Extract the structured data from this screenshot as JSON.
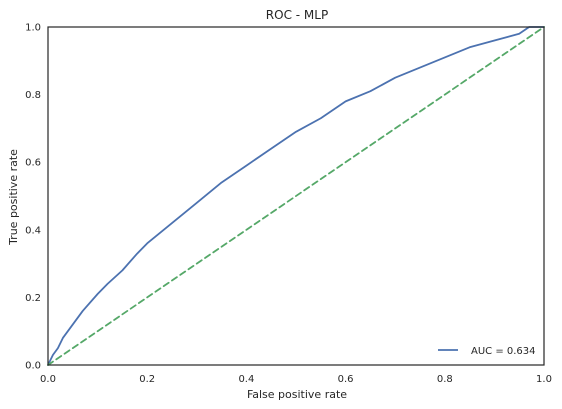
{
  "chart_data": {
    "type": "line",
    "title": "ROC - MLP",
    "xlabel": "False positive rate",
    "ylabel": "True positive rate",
    "xlim": [
      0,
      1
    ],
    "ylim": [
      0,
      1
    ],
    "x_ticks": [
      "0.0",
      "0.2",
      "0.4",
      "0.6",
      "0.8",
      "1.0"
    ],
    "y_ticks": [
      "0.0",
      "0.2",
      "0.4",
      "0.6",
      "0.8",
      "1.0"
    ],
    "grid": false,
    "legend_position": "lower-right",
    "series": [
      {
        "name": "AUC = 0.634",
        "color": "#4c72b0",
        "style": "solid",
        "x": [
          0.0,
          0.01,
          0.02,
          0.03,
          0.05,
          0.07,
          0.1,
          0.12,
          0.15,
          0.18,
          0.2,
          0.25,
          0.3,
          0.35,
          0.4,
          0.45,
          0.5,
          0.55,
          0.6,
          0.65,
          0.7,
          0.75,
          0.8,
          0.85,
          0.9,
          0.95,
          0.97,
          1.0
        ],
        "y": [
          0.0,
          0.03,
          0.05,
          0.08,
          0.12,
          0.16,
          0.21,
          0.24,
          0.28,
          0.33,
          0.36,
          0.42,
          0.48,
          0.54,
          0.59,
          0.64,
          0.69,
          0.73,
          0.78,
          0.81,
          0.85,
          0.88,
          0.91,
          0.94,
          0.96,
          0.98,
          1.0,
          1.0
        ]
      },
      {
        "name": "",
        "color": "#55a868",
        "style": "dashed",
        "x": [
          0.0,
          1.0
        ],
        "y": [
          0.0,
          1.0
        ]
      }
    ],
    "legend": [
      {
        "label": "AUC = 0.634",
        "color": "#4c72b0"
      }
    ]
  }
}
